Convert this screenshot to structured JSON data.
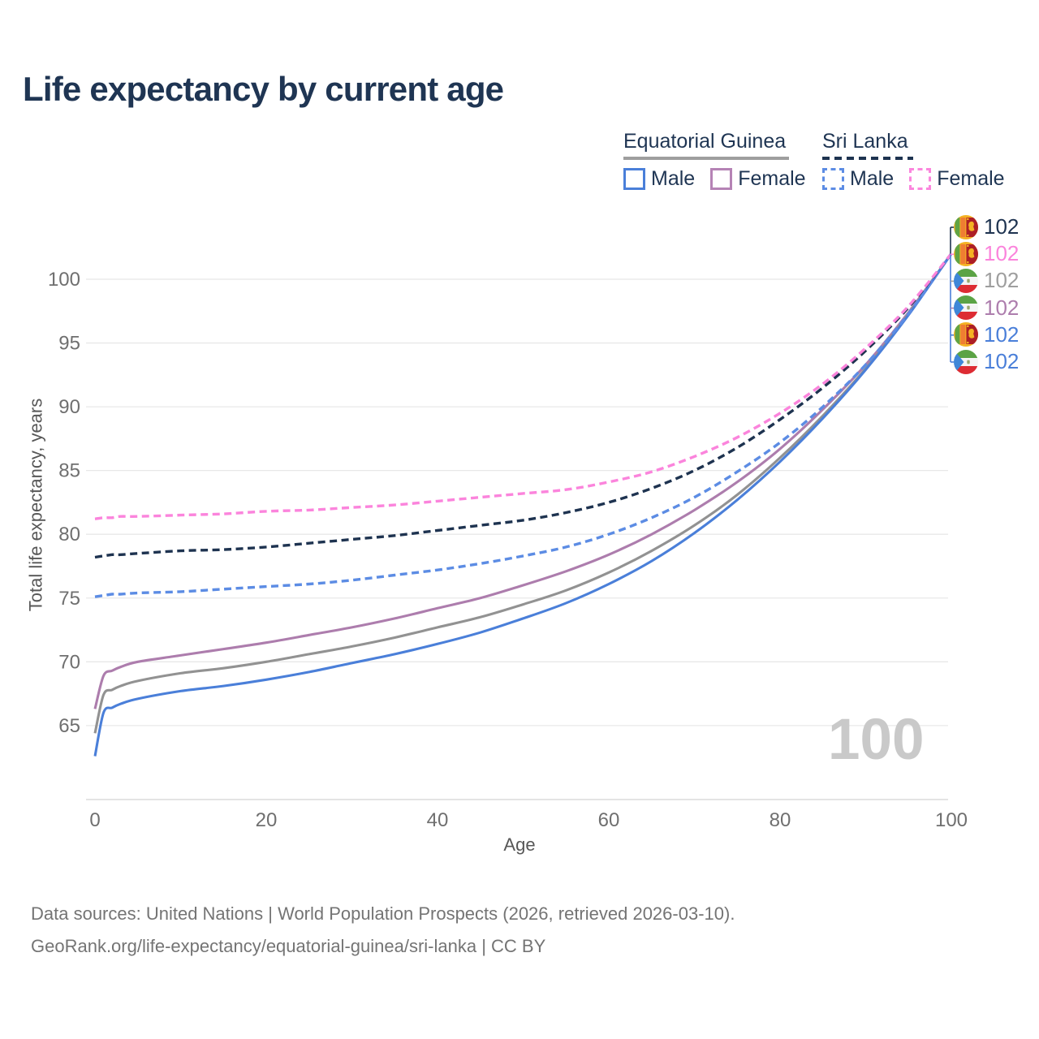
{
  "title": "Life expectancy by current age",
  "watermark": "100",
  "legend": {
    "groups": [
      {
        "label": "Equatorial Guinea",
        "line_style": "solid",
        "underline_color": "#9e9e9e",
        "items": [
          {
            "label": "Male",
            "color": "#4a7fd9",
            "dash": false
          },
          {
            "label": "Female",
            "color": "#b583b5",
            "dash": false
          }
        ]
      },
      {
        "label": "Sri Lanka",
        "line_style": "dashed",
        "underline_color": "#1e3350",
        "items": [
          {
            "label": "Male",
            "color": "#5c8ce4",
            "dash": true
          },
          {
            "label": "Female",
            "color": "#fb86dd",
            "dash": true
          }
        ]
      }
    ]
  },
  "chart_data": {
    "type": "line",
    "title": "Life expectancy by current age",
    "xlabel": "Age",
    "ylabel": "Total life expectancy, years",
    "xlim": [
      0,
      100
    ],
    "ylim": [
      59,
      103.5
    ],
    "x_ticks": [
      0,
      20,
      40,
      60,
      80,
      100
    ],
    "y_ticks": [
      65,
      70,
      75,
      80,
      85,
      90,
      95,
      100
    ],
    "grid": true,
    "legend_position": "top-right",
    "x": [
      0,
      1,
      2,
      3,
      5,
      10,
      15,
      20,
      25,
      30,
      35,
      40,
      45,
      50,
      55,
      60,
      65,
      70,
      75,
      80,
      85,
      90,
      95,
      100
    ],
    "series": [
      {
        "name": "Equatorial Guinea Female",
        "country": "Equatorial Guinea",
        "sex": "Female",
        "color": "#ad7dad",
        "dash": false,
        "end_label": "102",
        "values": [
          66.3,
          68.9,
          69.3,
          69.6,
          70.0,
          70.5,
          71.0,
          71.5,
          72.1,
          72.7,
          73.4,
          74.2,
          75.0,
          76.0,
          77.1,
          78.4,
          80.0,
          81.9,
          84.1,
          86.7,
          89.8,
          93.3,
          97.4,
          102
        ]
      },
      {
        "name": "Equatorial Guinea",
        "country": "Equatorial Guinea",
        "sex": "Both",
        "color": "#929292",
        "dash": false,
        "end_label": "102",
        "values": [
          64.4,
          67.4,
          67.8,
          68.1,
          68.5,
          69.1,
          69.5,
          70.0,
          70.6,
          71.2,
          71.9,
          72.7,
          73.5,
          74.5,
          75.6,
          77.0,
          78.7,
          80.7,
          83.1,
          86.0,
          89.3,
          93.0,
          97.3,
          102
        ]
      },
      {
        "name": "Equatorial Guinea Male",
        "country": "Equatorial Guinea",
        "sex": "Male",
        "color": "#4a7fd9",
        "dash": false,
        "end_label": "102",
        "values": [
          62.6,
          66.0,
          66.4,
          66.7,
          67.1,
          67.7,
          68.1,
          68.6,
          69.2,
          69.9,
          70.6,
          71.4,
          72.3,
          73.4,
          74.6,
          76.1,
          77.9,
          80.1,
          82.7,
          85.7,
          89.1,
          92.9,
          97.2,
          102
        ]
      },
      {
        "name": "Sri Lanka Male",
        "country": "Sri Lanka",
        "sex": "Male",
        "color": "#5c8ce4",
        "dash": true,
        "end_label": "102",
        "values": [
          75.1,
          75.2,
          75.3,
          75.3,
          75.4,
          75.5,
          75.7,
          75.9,
          76.1,
          76.4,
          76.8,
          77.2,
          77.7,
          78.3,
          79.0,
          80.0,
          81.3,
          82.9,
          84.9,
          87.2,
          90.0,
          93.3,
          97.3,
          102
        ]
      },
      {
        "name": "Sri Lanka",
        "country": "Sri Lanka",
        "sex": "Both",
        "color": "#1e3350",
        "dash": true,
        "end_label": "102",
        "values": [
          78.2,
          78.3,
          78.4,
          78.4,
          78.5,
          78.7,
          78.8,
          79.0,
          79.3,
          79.6,
          79.9,
          80.3,
          80.7,
          81.1,
          81.7,
          82.5,
          83.6,
          85.0,
          86.8,
          89.0,
          91.5,
          94.4,
          97.8,
          102
        ]
      },
      {
        "name": "Sri Lanka Female",
        "country": "Sri Lanka",
        "sex": "Female",
        "color": "#fb84dc",
        "dash": true,
        "end_label": "102",
        "values": [
          81.2,
          81.3,
          81.3,
          81.4,
          81.4,
          81.5,
          81.6,
          81.8,
          81.9,
          82.1,
          82.3,
          82.6,
          82.9,
          83.2,
          83.5,
          84.1,
          84.9,
          86.1,
          87.6,
          89.5,
          91.8,
          94.6,
          97.9,
          102
        ]
      }
    ]
  },
  "end_labels": [
    {
      "flag": "sri-lanka",
      "value": "102",
      "color": "#1e3350"
    },
    {
      "flag": "sri-lanka",
      "value": "102",
      "color": "#fb84dc"
    },
    {
      "flag": "equatorial-guinea",
      "value": "102",
      "color": "#9e9e9e"
    },
    {
      "flag": "equatorial-guinea",
      "value": "102",
      "color": "#ad7dad"
    },
    {
      "flag": "sri-lanka",
      "value": "102",
      "color": "#4a7fd9"
    },
    {
      "flag": "equatorial-guinea",
      "value": "102",
      "color": "#4a7fd9"
    }
  ],
  "footer": {
    "line1": "Data sources: United Nations | World Population Prospects (2026, retrieved 2026-03-10).",
    "line2": "GeoRank.org/life-expectancy/equatorial-guinea/sri-lanka | CC BY"
  }
}
